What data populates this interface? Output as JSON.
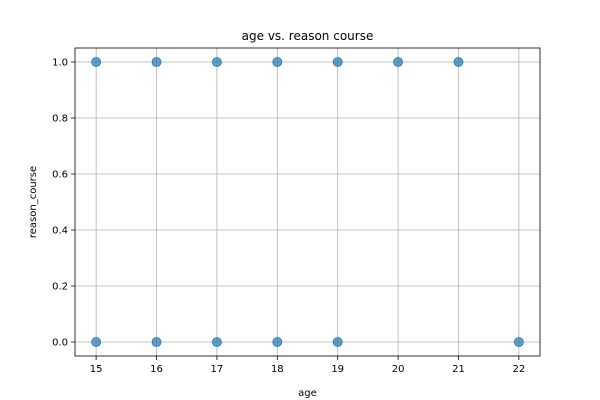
{
  "chart_data": {
    "type": "scatter",
    "title": "age vs. reason course",
    "xlabel": "age",
    "ylabel": "reason_course",
    "xlim": [
      14.65,
      22.35
    ],
    "ylim": [
      -0.05,
      1.05
    ],
    "x_ticks": [
      15,
      16,
      17,
      18,
      19,
      20,
      21,
      22
    ],
    "y_ticks": [
      0.0,
      0.2,
      0.4,
      0.6,
      0.8,
      1.0
    ],
    "y_tick_labels": [
      "0.0",
      "0.2",
      "0.4",
      "0.6",
      "0.8",
      "1.0"
    ],
    "grid": true,
    "marker_color": "#1f77b4",
    "marker_alpha": 0.7,
    "points": [
      {
        "x": 15,
        "y": 1
      },
      {
        "x": 16,
        "y": 1
      },
      {
        "x": 17,
        "y": 1
      },
      {
        "x": 18,
        "y": 1
      },
      {
        "x": 19,
        "y": 1
      },
      {
        "x": 20,
        "y": 1
      },
      {
        "x": 21,
        "y": 1
      },
      {
        "x": 15,
        "y": 0
      },
      {
        "x": 16,
        "y": 0
      },
      {
        "x": 17,
        "y": 0
      },
      {
        "x": 18,
        "y": 0
      },
      {
        "x": 19,
        "y": 0
      },
      {
        "x": 22,
        "y": 0
      }
    ]
  }
}
